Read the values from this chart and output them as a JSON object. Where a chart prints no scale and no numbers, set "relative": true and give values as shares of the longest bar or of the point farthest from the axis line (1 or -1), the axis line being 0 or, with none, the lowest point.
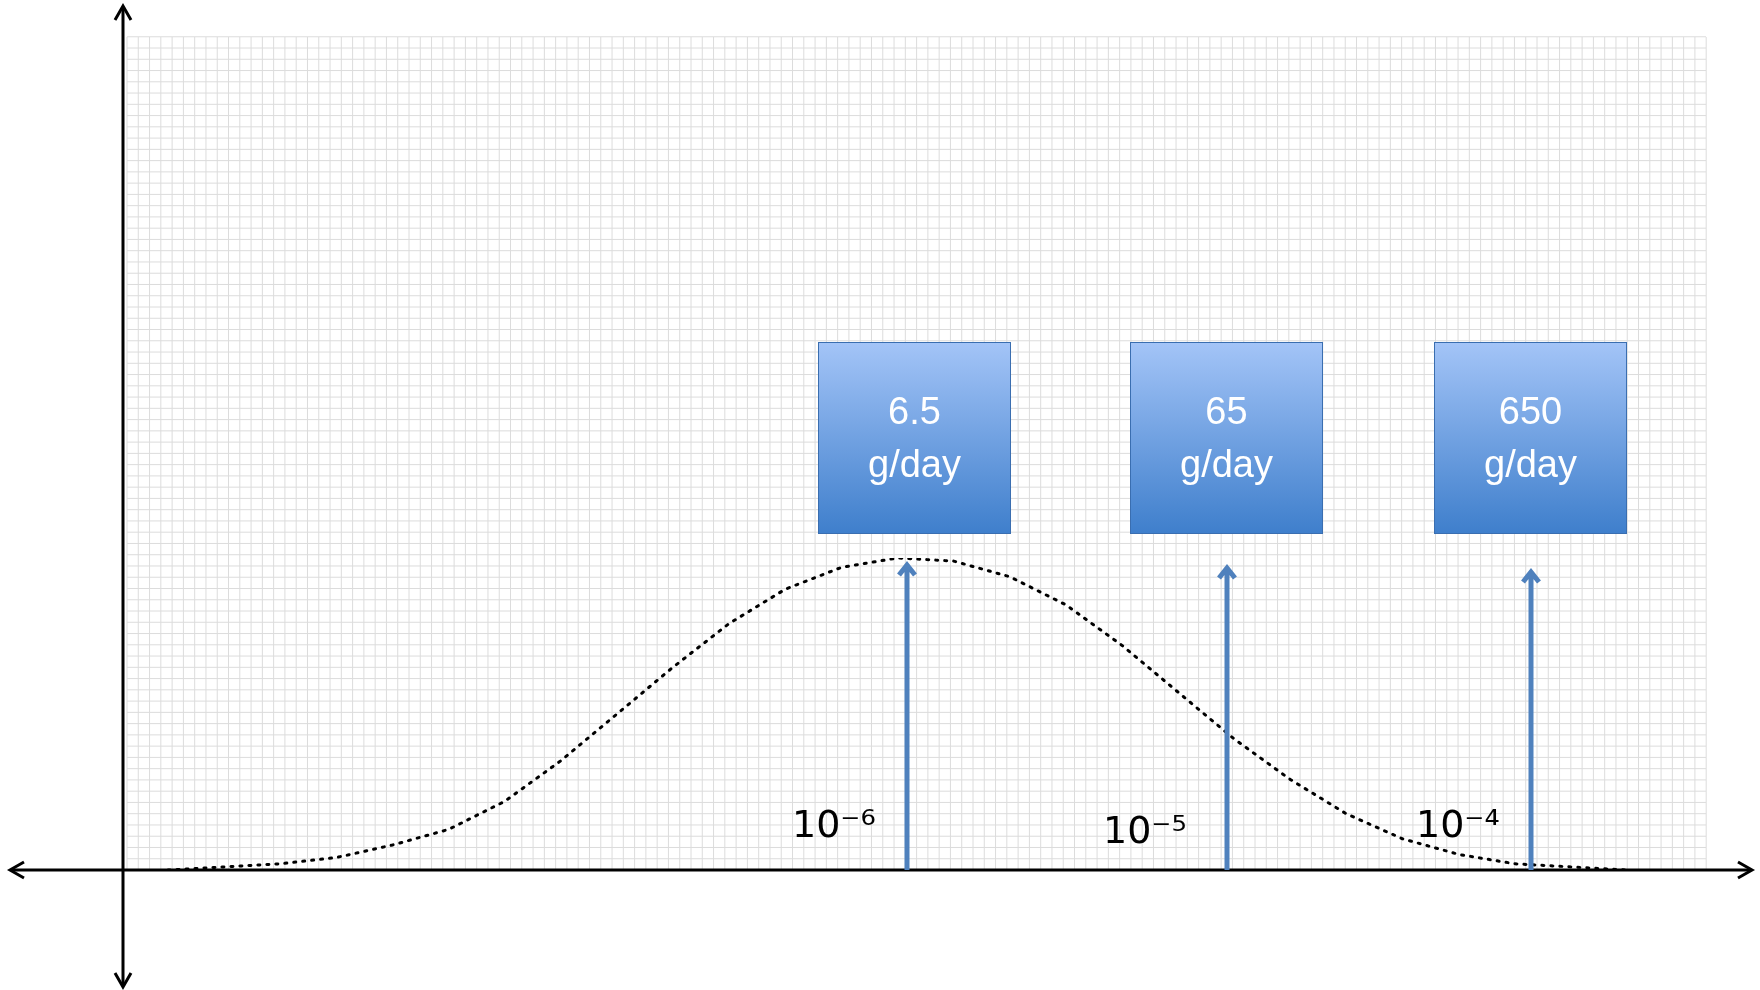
{
  "chart_data": {
    "type": "line",
    "relative": true,
    "categories": [
      null,
      null,
      null,
      null,
      null,
      null,
      null,
      null,
      null,
      null,
      null,
      null,
      null,
      null,
      null,
      null,
      null,
      null,
      null,
      null,
      null,
      null,
      null,
      null,
      null,
      null,
      null
    ],
    "series": [
      {
        "color": "#000000",
        "values": [
          0,
          0.01,
          0.02,
          0.04,
          0.08,
          0.13,
          0.22,
          0.35,
          0.5,
          0.65,
          0.79,
          0.9,
          0.97,
          1,
          0.99,
          0.94,
          0.85,
          0.72,
          0.57,
          0.42,
          0.29,
          0.18,
          0.1,
          0.05,
          0.02,
          0.01,
          0
        ]
      }
    ],
    "line_style": "dotted",
    "marker": "none",
    "grid": true,
    "legend": false,
    "annotations": [
      "6.5 g/day",
      "65 g/day",
      "650 g/day",
      "10⁻⁶",
      "10⁻⁵",
      "10⁻⁴"
    ]
  }
}
